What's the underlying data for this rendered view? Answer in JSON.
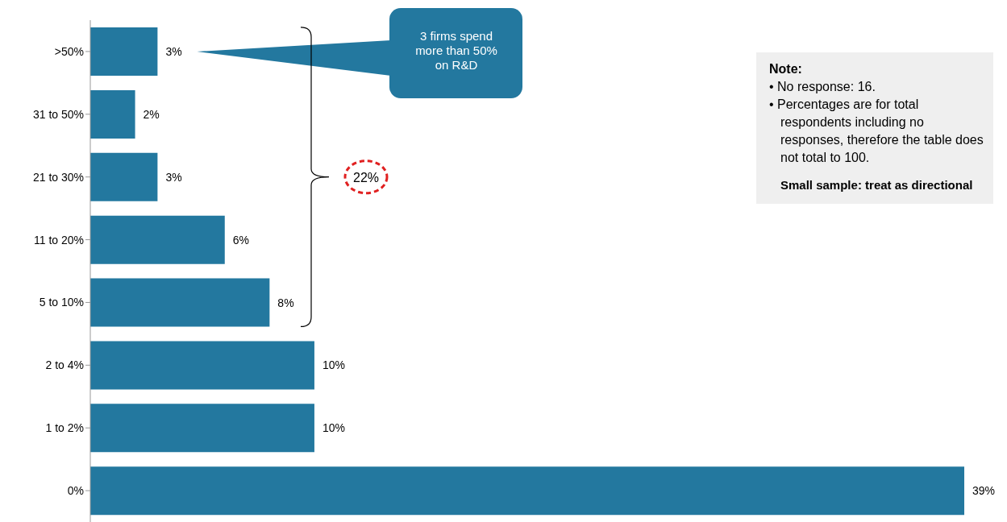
{
  "chart_data": {
    "type": "bar",
    "orientation": "horizontal",
    "categories": [
      ">50%",
      "31 to 50%",
      "21 to 30%",
      "11 to 20%",
      "5 to 10%",
      "2 to 4%",
      "1 to 2%",
      "0%"
    ],
    "values": [
      3,
      2,
      3,
      6,
      8,
      10,
      10,
      39
    ],
    "value_labels": [
      "3%",
      "2%",
      "3%",
      "6%",
      "8%",
      "10%",
      "10%",
      "39%"
    ],
    "color": "#23789f",
    "annotations": [
      "3 firms spend more than 50% on R&D",
      "22%",
      "Note:",
      "• No response: 16.",
      "• Percentages are for total respondents including no responses, therefore the table does not total to 100.",
      "Small sample: treat as directional"
    ]
  }
}
